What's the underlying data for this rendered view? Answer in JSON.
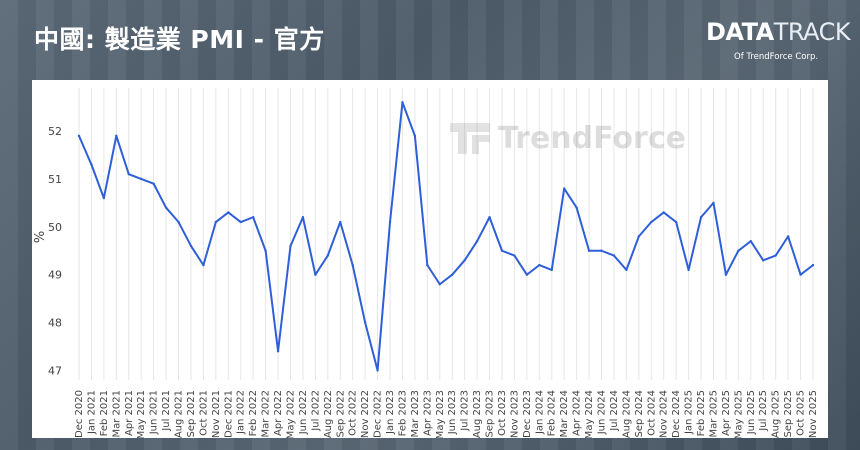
{
  "header": {
    "title": "中國: 製造業 PMI - 官方"
  },
  "logo": {
    "part1": "DATA",
    "part2": "TRACK",
    "sub_prefix": "Of",
    "sub_brand": "TrendForce Corp."
  },
  "watermark": "TrendForce",
  "colors": {
    "line": "#2f5fd8",
    "grid": "#e6e6e6",
    "title": "#ffffff"
  },
  "chart_data": {
    "type": "line",
    "ylabel": "%",
    "ylim": [
      46.8,
      52.9
    ],
    "yticks": [
      47,
      48,
      49,
      50,
      51,
      52
    ],
    "grid": "vertical lines at each month",
    "x": [
      "Dec 2020",
      "Jan 2021",
      "Feb 2021",
      "Mar 2021",
      "Apr 2021",
      "May 2021",
      "Jun 2021",
      "Jul 2021",
      "Aug 2021",
      "Sep 2021",
      "Oct 2021",
      "Nov 2021",
      "Dec 2021",
      "Jan 2022",
      "Feb 2022",
      "Mar 2022",
      "Apr 2022",
      "May 2022",
      "Jun 2022",
      "Jul 2022",
      "Aug 2022",
      "Sep 2022",
      "Oct 2022",
      "Nov 2022",
      "Dec 2022",
      "Jan 2023",
      "Feb 2023",
      "Mar 2023",
      "Apr 2023",
      "May 2023",
      "Jun 2023",
      "Jul 2023",
      "Aug 2023",
      "Sep 2023",
      "Oct 2023",
      "Nov 2023",
      "Dec 2023",
      "Jan 2024",
      "Feb 2024",
      "Mar 2024",
      "Apr 2024",
      "May 2024",
      "Jun 2024",
      "Jul 2024",
      "Aug 2024",
      "Sep 2024",
      "Oct 2024",
      "Nov 2024",
      "Dec 2024",
      "Jan 2025",
      "Feb 2025",
      "Mar 2025",
      "Apr 2025",
      "May 2025",
      "Jun 2025",
      "Jul 2025",
      "Aug 2025",
      "Sep 2025",
      "Oct 2025",
      "Nov 2025"
    ],
    "series": [
      {
        "values": [
          51.9,
          51.3,
          50.6,
          51.9,
          51.1,
          51.0,
          50.9,
          50.4,
          50.1,
          49.6,
          49.2,
          50.1,
          50.3,
          50.1,
          50.2,
          49.5,
          47.4,
          49.6,
          50.2,
          49.0,
          49.4,
          50.1,
          49.2,
          48.0,
          47.0,
          50.1,
          52.6,
          51.9,
          49.2,
          48.8,
          49.0,
          49.3,
          49.7,
          50.2,
          49.5,
          49.4,
          49.0,
          49.2,
          49.1,
          50.8,
          50.4,
          49.5,
          49.5,
          49.4,
          49.1,
          49.8,
          50.1,
          50.3,
          50.1,
          49.1,
          50.2,
          50.5,
          49.0,
          49.5,
          49.7,
          49.3,
          49.4,
          49.8,
          49.0,
          49.2
        ]
      }
    ]
  }
}
